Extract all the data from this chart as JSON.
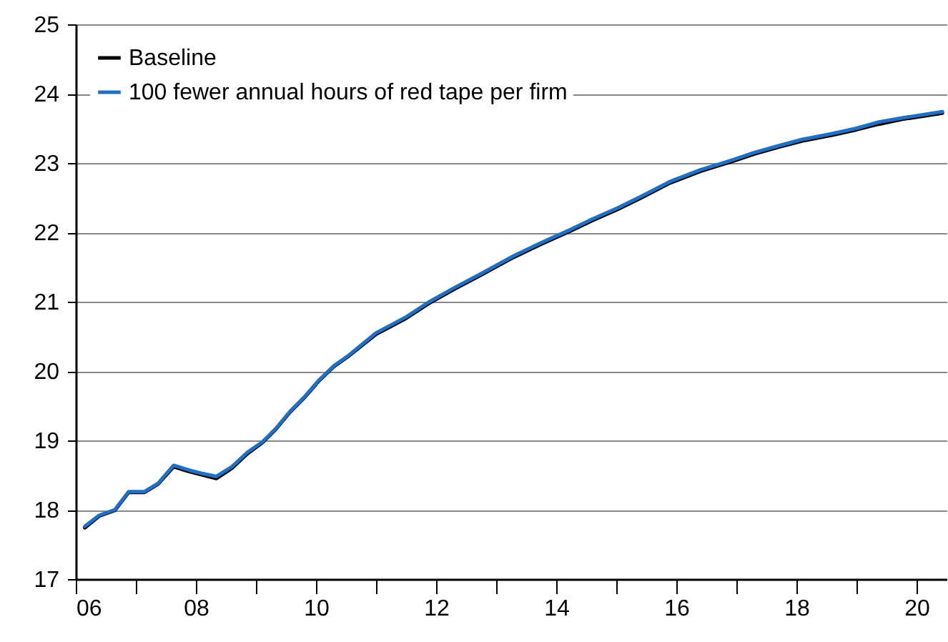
{
  "chart_data": {
    "type": "line",
    "xlim": [
      2006,
      2020.5
    ],
    "ylim": [
      17,
      25
    ],
    "xticks": [
      {
        "value": 2006,
        "label": "06"
      },
      {
        "value": 2007,
        "label": null
      },
      {
        "value": 2008,
        "label": "08"
      },
      {
        "value": 2009,
        "label": null
      },
      {
        "value": 2010,
        "label": "10"
      },
      {
        "value": 2011,
        "label": null
      },
      {
        "value": 2012,
        "label": "12"
      },
      {
        "value": 2013,
        "label": null
      },
      {
        "value": 2014,
        "label": "14"
      },
      {
        "value": 2015,
        "label": null
      },
      {
        "value": 2016,
        "label": "16"
      },
      {
        "value": 2017,
        "label": null
      },
      {
        "value": 2018,
        "label": "18"
      },
      {
        "value": 2019,
        "label": null
      },
      {
        "value": 2020,
        "label": "20"
      }
    ],
    "yticks": [
      17,
      18,
      19,
      20,
      21,
      22,
      23,
      24,
      25
    ],
    "x": [
      2006.15,
      2006.39,
      2006.65,
      2006.88,
      2007.14,
      2007.37,
      2007.63,
      2007.89,
      2008.12,
      2008.34,
      2008.6,
      2008.86,
      2009.11,
      2009.33,
      2009.57,
      2009.8,
      2010.04,
      2010.29,
      2010.55,
      2011.0,
      2011.5,
      2011.87,
      2012.3,
      2012.74,
      2013.29,
      2013.75,
      2014.24,
      2014.6,
      2015.02,
      2015.42,
      2015.89,
      2016.4,
      2016.92,
      2017.3,
      2017.71,
      2018.1,
      2018.58,
      2019.0,
      2019.37,
      2019.76,
      2020.43
    ],
    "series": [
      {
        "name": "Baseline",
        "color": "#000000",
        "values": [
          17.74,
          17.91,
          17.99,
          18.25,
          18.25,
          18.37,
          18.62,
          18.55,
          18.5,
          18.45,
          18.6,
          18.81,
          18.97,
          19.16,
          19.41,
          19.61,
          19.85,
          20.06,
          20.22,
          20.53,
          20.76,
          20.97,
          21.18,
          21.38,
          21.64,
          21.83,
          22.02,
          22.17,
          22.33,
          22.5,
          22.71,
          22.88,
          23.02,
          23.13,
          23.23,
          23.32,
          23.4,
          23.48,
          23.56,
          23.63,
          23.72
        ]
      },
      {
        "name": "100 fewer annual hours of red tape per firm",
        "color": "#1f6fc5",
        "values": [
          17.76,
          17.92,
          18.0,
          18.26,
          18.26,
          18.38,
          18.64,
          18.57,
          18.52,
          18.48,
          18.62,
          18.83,
          18.98,
          19.17,
          19.42,
          19.62,
          19.86,
          20.07,
          20.23,
          20.55,
          20.78,
          20.99,
          21.2,
          21.4,
          21.66,
          21.85,
          22.04,
          22.19,
          22.35,
          22.52,
          22.73,
          22.9,
          23.04,
          23.15,
          23.25,
          23.34,
          23.42,
          23.5,
          23.59,
          23.65,
          23.74
        ]
      }
    ],
    "grid": "y",
    "legend": "top left",
    "line_style": "solid",
    "marker": "none"
  }
}
